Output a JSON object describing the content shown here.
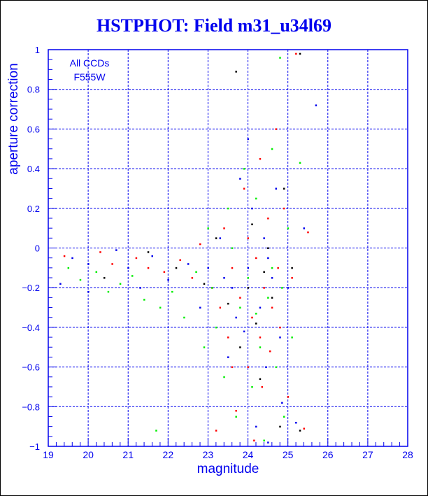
{
  "chart_data": {
    "type": "scatter",
    "title": "HSTPHOT: Field m31_u34l69",
    "xlabel": "magnitude",
    "ylabel": "aperture correction",
    "xlim": [
      19,
      28
    ],
    "ylim": [
      -1,
      1
    ],
    "xticks": [
      "19",
      "20",
      "21",
      "22",
      "23",
      "24",
      "25",
      "26",
      "27",
      "28"
    ],
    "yticks": [
      "-1",
      "-0.8",
      "-0.6",
      "-0.4",
      "-0.2",
      "0",
      "0.2",
      "0.4",
      "0.6",
      "0.8",
      "1"
    ],
    "grid": true,
    "annotation": [
      "All CCDs",
      "F555W"
    ],
    "series": [
      {
        "name": "red",
        "color": "#ff0000",
        "points": [
          [
            19.4,
            -0.04
          ],
          [
            20.3,
            -0.02
          ],
          [
            20.6,
            -0.08
          ],
          [
            21.2,
            -0.05
          ],
          [
            21.5,
            -0.1
          ],
          [
            21.9,
            -0.12
          ],
          [
            22.3,
            -0.06
          ],
          [
            22.6,
            -0.15
          ],
          [
            22.8,
            0.02
          ],
          [
            23.1,
            -0.2
          ],
          [
            23.2,
            -0.92
          ],
          [
            23.3,
            -0.3
          ],
          [
            23.4,
            0.1
          ],
          [
            23.5,
            -0.45
          ],
          [
            23.6,
            -0.1
          ],
          [
            23.7,
            -0.82
          ],
          [
            23.8,
            -0.25
          ],
          [
            23.9,
            0.3
          ],
          [
            24.0,
            -0.6
          ],
          [
            24.1,
            -0.35
          ],
          [
            24.15,
            -0.97
          ],
          [
            24.2,
            -0.05
          ],
          [
            24.3,
            0.45
          ],
          [
            24.35,
            -0.7
          ],
          [
            24.4,
            -0.2
          ],
          [
            24.5,
            0.15
          ],
          [
            24.55,
            -0.52
          ],
          [
            24.6,
            -0.3
          ],
          [
            24.7,
            0.6
          ],
          [
            24.75,
            -0.1
          ],
          [
            24.8,
            -0.4
          ],
          [
            24.9,
            0.2
          ],
          [
            25.0,
            -0.75
          ],
          [
            25.1,
            -0.15
          ],
          [
            25.2,
            0.98
          ],
          [
            25.4,
            -0.91
          ],
          [
            25.5,
            0.08
          ],
          [
            23.6,
            -0.6
          ],
          [
            24.0,
            0.05
          ],
          [
            24.3,
            -0.45
          ]
        ]
      },
      {
        "name": "green",
        "color": "#00ee00",
        "points": [
          [
            19.5,
            -0.1
          ],
          [
            19.8,
            -0.16
          ],
          [
            20.2,
            -0.12
          ],
          [
            20.5,
            -0.22
          ],
          [
            20.8,
            -0.18
          ],
          [
            21.1,
            -0.14
          ],
          [
            21.4,
            -0.26
          ],
          [
            21.7,
            -0.92
          ],
          [
            21.8,
            -0.3
          ],
          [
            22.1,
            -0.22
          ],
          [
            22.4,
            -0.35
          ],
          [
            22.7,
            -0.12
          ],
          [
            22.9,
            -0.5
          ],
          [
            23.0,
            0.1
          ],
          [
            23.2,
            -0.4
          ],
          [
            23.4,
            -0.65
          ],
          [
            23.5,
            0.2
          ],
          [
            23.7,
            -0.85
          ],
          [
            23.8,
            -0.3
          ],
          [
            23.9,
            0.4
          ],
          [
            24.0,
            -0.15
          ],
          [
            24.1,
            -0.7
          ],
          [
            24.2,
            0.25
          ],
          [
            24.3,
            -0.5
          ],
          [
            24.4,
            -0.97
          ],
          [
            24.5,
            -0.25
          ],
          [
            24.6,
            0.5
          ],
          [
            24.7,
            -0.6
          ],
          [
            24.8,
            0.96
          ],
          [
            24.85,
            -0.2
          ],
          [
            24.9,
            -0.85
          ],
          [
            25.0,
            0.1
          ],
          [
            25.1,
            -0.45
          ],
          [
            25.3,
            0.43
          ],
          [
            24.6,
            -0.1
          ],
          [
            23.6,
            0.0
          ],
          [
            24.2,
            -0.33
          ],
          [
            23.1,
            -0.2
          ]
        ]
      },
      {
        "name": "blue",
        "color": "#0000ee",
        "points": [
          [
            19.3,
            -0.18
          ],
          [
            19.6,
            -0.05
          ],
          [
            20.0,
            -0.08
          ],
          [
            20.0,
            -0.22
          ],
          [
            20.7,
            -0.01
          ],
          [
            21.0,
            -0.1
          ],
          [
            21.3,
            -0.2
          ],
          [
            21.6,
            -0.04
          ],
          [
            22.0,
            -0.16
          ],
          [
            22.5,
            -0.08
          ],
          [
            22.8,
            -0.3
          ],
          [
            23.0,
            -0.1
          ],
          [
            23.3,
            0.05
          ],
          [
            23.5,
            -0.55
          ],
          [
            23.6,
            -0.2
          ],
          [
            23.8,
            0.35
          ],
          [
            23.9,
            -0.42
          ],
          [
            24.0,
            -0.1
          ],
          [
            24.1,
            0.2
          ],
          [
            24.2,
            -0.9
          ],
          [
            24.3,
            -0.3
          ],
          [
            24.4,
            0.05
          ],
          [
            24.45,
            -0.6
          ],
          [
            24.5,
            -0.98
          ],
          [
            24.6,
            -0.15
          ],
          [
            24.7,
            0.3
          ],
          [
            24.8,
            -0.45
          ],
          [
            24.85,
            -0.78
          ],
          [
            25.0,
            -0.2
          ],
          [
            25.2,
            -0.88
          ],
          [
            25.4,
            0.1
          ],
          [
            25.7,
            0.72
          ],
          [
            24.0,
            0.55
          ],
          [
            23.7,
            -0.35
          ],
          [
            24.5,
            -0.05
          ],
          [
            23.4,
            -0.15
          ]
        ]
      },
      {
        "name": "black",
        "color": "#000000",
        "points": [
          [
            20.4,
            -0.15
          ],
          [
            21.5,
            -0.02
          ],
          [
            22.2,
            -0.1
          ],
          [
            22.9,
            -0.18
          ],
          [
            23.2,
            0.05
          ],
          [
            23.5,
            -0.28
          ],
          [
            23.7,
            0.89
          ],
          [
            23.8,
            -0.5
          ],
          [
            24.0,
            -0.2
          ],
          [
            24.1,
            0.12
          ],
          [
            24.2,
            -0.38
          ],
          [
            24.3,
            -0.66
          ],
          [
            24.5,
            0.0
          ],
          [
            24.6,
            -0.25
          ],
          [
            24.8,
            -0.9
          ],
          [
            24.9,
            0.3
          ],
          [
            25.1,
            -0.1
          ],
          [
            25.3,
            0.98
          ],
          [
            25.3,
            -0.92
          ],
          [
            24.4,
            -0.12
          ]
        ]
      }
    ]
  }
}
